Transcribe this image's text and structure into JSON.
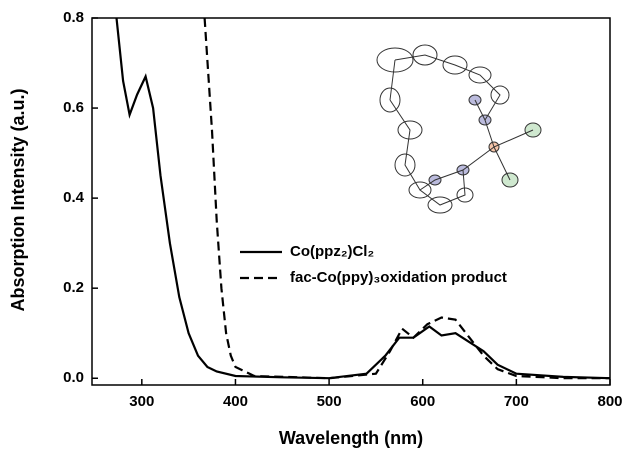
{
  "chart_data": {
    "type": "line",
    "x_label": "Wavelength (nm)",
    "y_label": "Absorption Intensity (a.u.)",
    "xlim": [
      250,
      800
    ],
    "ylim": [
      -0.015,
      0.8
    ],
    "xticks": [
      300,
      400,
      500,
      600,
      700,
      800
    ],
    "yticks": [
      {
        "value": 0,
        "label": "0.0"
      },
      0.2,
      0.4,
      0.6,
      0.8
    ],
    "series": [
      {
        "name": "Co(ppz₂)Cl₂",
        "color": "#000000",
        "dash": "solid",
        "x": [
          273,
          280,
          287,
          295,
          304,
          312,
          320,
          330,
          340,
          350,
          360,
          370,
          380,
          400,
          450,
          500,
          540,
          560,
          575,
          590,
          607,
          620,
          635,
          650,
          665,
          680,
          700,
          750,
          800
        ],
        "values": [
          0.8,
          0.66,
          0.585,
          0.63,
          0.67,
          0.6,
          0.45,
          0.3,
          0.18,
          0.1,
          0.05,
          0.025,
          0.015,
          0.005,
          0.002,
          0.0,
          0.01,
          0.05,
          0.09,
          0.09,
          0.115,
          0.095,
          0.1,
          0.08,
          0.06,
          0.03,
          0.01,
          0.003,
          0.0
        ]
      },
      {
        "name": "fac-Co(ppy)₃oxidation product",
        "color": "#000000",
        "dash": "dashed",
        "x": [
          367,
          375,
          380,
          385,
          390,
          395,
          400,
          420,
          500,
          550,
          565,
          578,
          590,
          605,
          620,
          635,
          650,
          665,
          680,
          700,
          750,
          800
        ],
        "values": [
          0.8,
          0.55,
          0.35,
          0.2,
          0.1,
          0.05,
          0.025,
          0.005,
          0.0,
          0.01,
          0.06,
          0.11,
          0.09,
          0.12,
          0.135,
          0.13,
          0.09,
          0.05,
          0.02,
          0.005,
          0.0,
          0.0
        ]
      }
    ]
  }
}
